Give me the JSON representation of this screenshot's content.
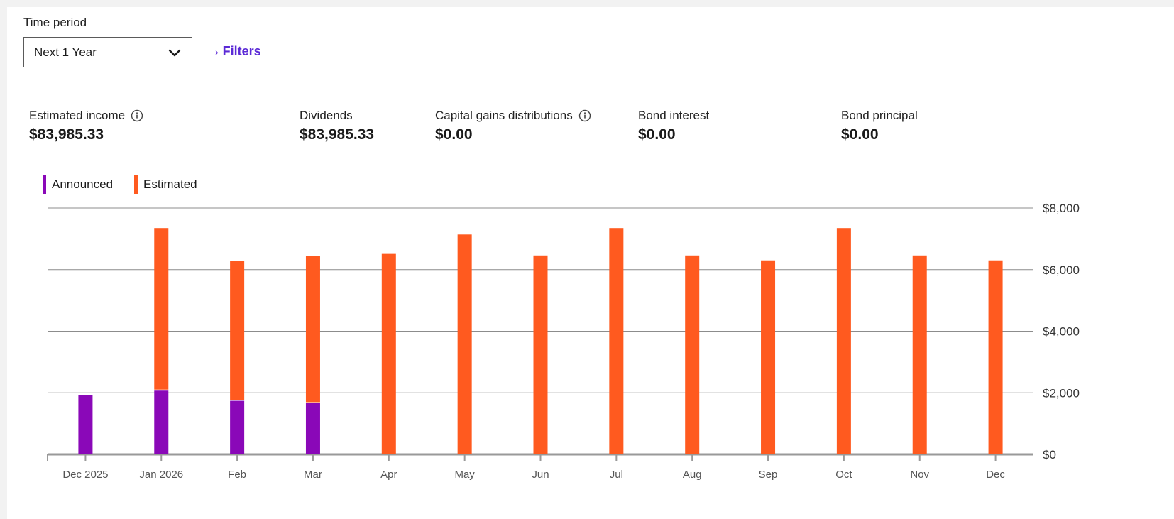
{
  "time_period": {
    "label": "Time period",
    "selected": "Next 1 Year",
    "chevron_icon": "chevron-down-icon"
  },
  "filters": {
    "label": "Filters",
    "icon": "chevron-right-icon"
  },
  "metrics": [
    {
      "label": "Estimated income",
      "value": "$83,985.33",
      "info": true
    },
    {
      "label": "Dividends",
      "value": "$83,985.33",
      "info": false
    },
    {
      "label": "Capital gains distributions",
      "value": "$0.00",
      "info": true
    },
    {
      "label": "Bond interest",
      "value": "$0.00",
      "info": false
    },
    {
      "label": "Bond principal",
      "value": "$0.00",
      "info": false
    }
  ],
  "colors": {
    "announced": "#8a08b8",
    "estimated": "#ff5a1f",
    "grid": "#8c8c8c",
    "axis": "#999999"
  },
  "chart_data": {
    "type": "bar",
    "stacked": true,
    "categories": [
      "Dec 2025",
      "Jan 2026",
      "Feb",
      "Mar",
      "Apr",
      "May",
      "Jun",
      "Jul",
      "Aug",
      "Sep",
      "Oct",
      "Nov",
      "Dec"
    ],
    "series": [
      {
        "name": "Announced",
        "values": [
          1920,
          2070,
          1740,
          1660,
          0,
          0,
          0,
          0,
          0,
          0,
          0,
          0,
          0
        ]
      },
      {
        "name": "Estimated",
        "values": [
          0,
          5280,
          4540,
          4790,
          6510,
          7140,
          6460,
          7350,
          6460,
          6300,
          7350,
          6460,
          6300
        ]
      }
    ],
    "ylim": [
      0,
      8000
    ],
    "yticks": [
      "$0",
      "$2,000",
      "$4,000",
      "$6,000",
      "$8,000"
    ],
    "ytick_values": [
      0,
      2000,
      4000,
      6000,
      8000
    ],
    "grid": true,
    "legend_position": "top-left",
    "y_axis_position": "right"
  }
}
